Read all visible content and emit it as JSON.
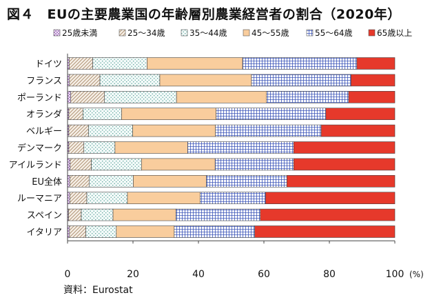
{
  "title": "図４　EUの主要農業国の年齢層別農業経営者の割合（2020年）",
  "source": "資料：Eurostat",
  "chart_data": {
    "type": "bar",
    "orientation": "horizontal",
    "stacked": true,
    "title": "図４　EUの主要農業国の年齢層別農業経営者の割合（2020年）",
    "xlabel": "(%)",
    "ylabel": "",
    "xlim": [
      0,
      100
    ],
    "x_ticks": [
      "0",
      "20",
      "40",
      "60",
      "80",
      "100"
    ],
    "x_unit": "(%)",
    "grid": false,
    "legend_position": "top",
    "categories": [
      "ドイツ",
      "フランス",
      "ポーランド",
      "オランダ",
      "ベルギー",
      "デンマーク",
      "アイルランド",
      "EU全体",
      "ルーマニア",
      "スペイン",
      "イタリア"
    ],
    "series": [
      {
        "name": "25歳未満",
        "color": "#9b59b6",
        "pattern": "dots-purple",
        "values": [
          0.5,
          0.6,
          1.0,
          0.4,
          0.4,
          0.4,
          0.8,
          0.7,
          0.7,
          0.3,
          0.6
        ]
      },
      {
        "name": "25〜34歳",
        "color": "#c8b49a",
        "pattern": "diagonal",
        "values": [
          7.2,
          9.3,
          10.3,
          4.3,
          6.0,
          4.6,
          6.5,
          5.9,
          5.2,
          3.9,
          5.0
        ]
      },
      {
        "name": "35〜44歳",
        "color": "#7fb8b0",
        "pattern": "dots-teal",
        "values": [
          16.6,
          18.3,
          22.0,
          11.8,
          13.5,
          9.5,
          15.3,
          13.5,
          12.4,
          9.7,
          9.3
        ]
      },
      {
        "name": "45〜55歳",
        "color": "#f7c99a",
        "pattern": "solid-peach",
        "values": [
          29.2,
          28.0,
          27.5,
          28.9,
          25.3,
          22.2,
          22.5,
          22.3,
          22.2,
          19.2,
          17.7
        ]
      },
      {
        "name": "55〜64歳",
        "color": "#6b7fc4",
        "pattern": "grid-blue",
        "values": [
          34.9,
          30.4,
          25.1,
          33.5,
          32.3,
          32.4,
          24.0,
          24.6,
          20.0,
          25.8,
          24.6
        ]
      },
      {
        "name": "65歳以上",
        "color": "#e8392a",
        "pattern": "solid-red",
        "values": [
          11.6,
          13.4,
          14.1,
          21.1,
          22.5,
          30.9,
          30.9,
          33.0,
          39.5,
          41.1,
          42.8
        ]
      }
    ]
  }
}
